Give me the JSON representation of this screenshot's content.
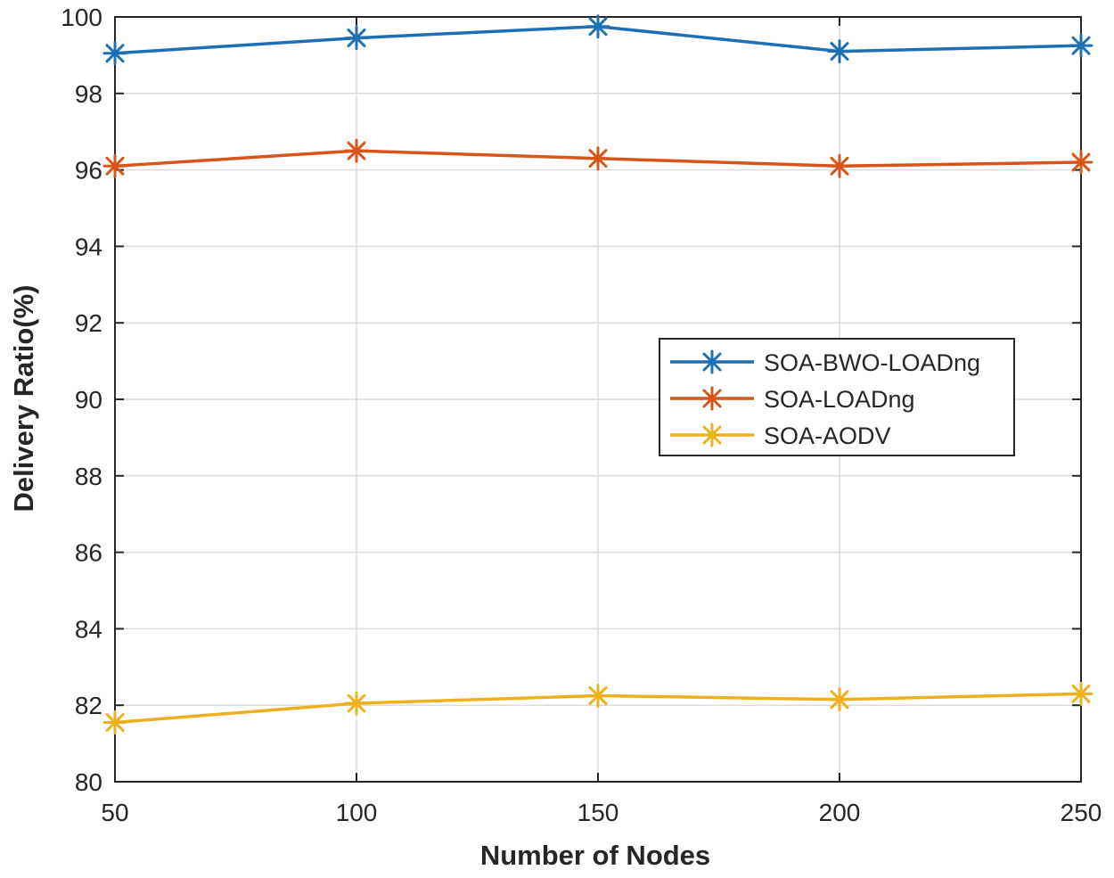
{
  "chart_data": {
    "type": "line",
    "title": "",
    "xlabel": "Number of Nodes",
    "ylabel": "Delivery Ratio(%)",
    "x": [
      50,
      100,
      150,
      200,
      250
    ],
    "xticks": [
      "50",
      "100",
      "150",
      "200",
      "250"
    ],
    "yticks": [
      "80",
      "82",
      "84",
      "86",
      "88",
      "90",
      "92",
      "94",
      "96",
      "98",
      "100"
    ],
    "xlim": [
      50,
      250
    ],
    "ylim": [
      80,
      100
    ],
    "grid": true,
    "marker": "asterisk",
    "legend_position": "center-right",
    "series": [
      {
        "name": "SOA-BWO-LOADng",
        "color": "#1f6fb5",
        "values": [
          99.05,
          99.45,
          99.75,
          99.1,
          99.25
        ]
      },
      {
        "name": "SOA-LOADng",
        "color": "#d9541a",
        "values": [
          96.1,
          96.5,
          96.3,
          96.1,
          96.2
        ]
      },
      {
        "name": "SOA-AODV",
        "color": "#edb120",
        "values": [
          81.55,
          82.05,
          82.25,
          82.15,
          82.3
        ]
      }
    ]
  }
}
